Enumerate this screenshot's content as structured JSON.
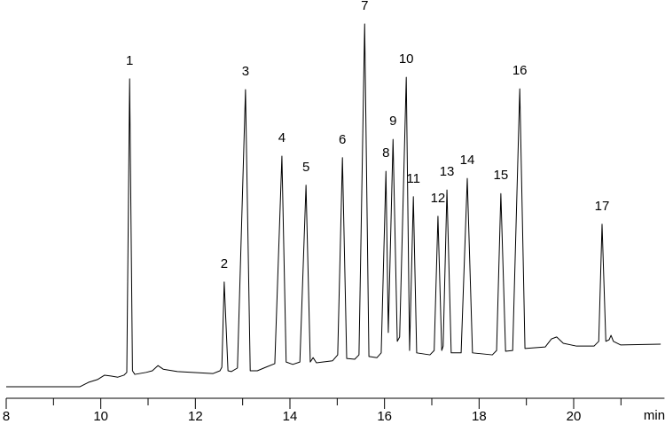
{
  "chart_data": {
    "type": "line",
    "x_label": "min",
    "xlim": [
      8,
      21.92
    ],
    "ylim": [
      0,
      100
    ],
    "xticks": [
      8,
      10,
      12,
      14,
      16,
      18,
      20
    ],
    "xminor_ticks": [
      9,
      11,
      13,
      15,
      17,
      19,
      21
    ],
    "series": [
      {
        "color": "#000000",
        "x": [
          8,
          9.56,
          9.74,
          9.93,
          10.08,
          10.21,
          10.36,
          10.49,
          10.55,
          10.61,
          10.67,
          10.72,
          10.96,
          11.09,
          11.21,
          11.32,
          11.62,
          12.37,
          12.52,
          12.56,
          12.61,
          12.69,
          12.76,
          12.89,
          13.06,
          13.16,
          13.31,
          13.49,
          13.68,
          13.83,
          13.92,
          14.06,
          14.21,
          14.34,
          14.43,
          14.49,
          14.56,
          14.9,
          15.01,
          15.11,
          15.2,
          15.37,
          15.46,
          15.58,
          15.67,
          15.84,
          15.93,
          16.03,
          16.08,
          16.18,
          16.27,
          16.32,
          16.46,
          16.53,
          16.61,
          16.68,
          16.96,
          17.05,
          17.13,
          17.21,
          17.24,
          17.32,
          17.41,
          17.62,
          17.75,
          17.86,
          18.28,
          18.37,
          18.46,
          18.56,
          18.71,
          18.86,
          18.97,
          19.4,
          19.53,
          19.64,
          19.78,
          20.06,
          20.43,
          20.53,
          20.6,
          20.68,
          20.75,
          20.79,
          20.84,
          20.99,
          21.84
        ],
        "values": [
          2.9,
          2.9,
          4.0,
          4.7,
          5.8,
          5.6,
          5.3,
          5.8,
          6.5,
          80.2,
          6.9,
          6.0,
          6.5,
          6.9,
          8.2,
          7.3,
          6.7,
          6.2,
          6.9,
          7.8,
          29.2,
          6.9,
          6.7,
          7.6,
          77.5,
          6.9,
          6.9,
          7.8,
          8.7,
          60.8,
          9.1,
          8.5,
          9.1,
          53.5,
          9.1,
          10.2,
          8.9,
          9.4,
          10.9,
          60.4,
          10.0,
          9.8,
          10.9,
          94.0,
          10.5,
          10.2,
          11.4,
          57.0,
          16.5,
          65.0,
          14.3,
          15.4,
          80.6,
          12.0,
          50.6,
          11.4,
          10.9,
          12.0,
          45.7,
          12.0,
          13.1,
          52.3,
          11.4,
          11.4,
          55.2,
          11.4,
          10.9,
          12.0,
          51.4,
          11.8,
          12.0,
          77.7,
          12.5,
          12.9,
          14.9,
          15.4,
          13.8,
          13.1,
          13.1,
          14.3,
          43.7,
          14.3,
          14.7,
          15.8,
          14.3,
          13.4,
          13.6
        ]
      }
    ],
    "peaks": [
      {
        "label": "1",
        "x": 10.61,
        "y": 80.2
      },
      {
        "label": "2",
        "x": 12.61,
        "y": 29.2
      },
      {
        "label": "3",
        "x": 13.06,
        "y": 77.5
      },
      {
        "label": "4",
        "x": 13.83,
        "y": 60.8
      },
      {
        "label": "5",
        "x": 14.34,
        "y": 53.5
      },
      {
        "label": "6",
        "x": 15.11,
        "y": 60.4
      },
      {
        "label": "7",
        "x": 15.58,
        "y": 94.0
      },
      {
        "label": "8",
        "x": 16.03,
        "y": 57.0
      },
      {
        "label": "9",
        "x": 16.18,
        "y": 65.0
      },
      {
        "label": "10",
        "x": 16.46,
        "y": 80.6
      },
      {
        "label": "11",
        "x": 16.61,
        "y": 50.6
      },
      {
        "label": "12",
        "x": 17.13,
        "y": 45.7
      },
      {
        "label": "13",
        "x": 17.32,
        "y": 52.3
      },
      {
        "label": "14",
        "x": 17.75,
        "y": 55.2
      },
      {
        "label": "15",
        "x": 18.46,
        "y": 51.4
      },
      {
        "label": "16",
        "x": 18.86,
        "y": 77.7
      },
      {
        "label": "17",
        "x": 20.6,
        "y": 43.7
      }
    ]
  }
}
